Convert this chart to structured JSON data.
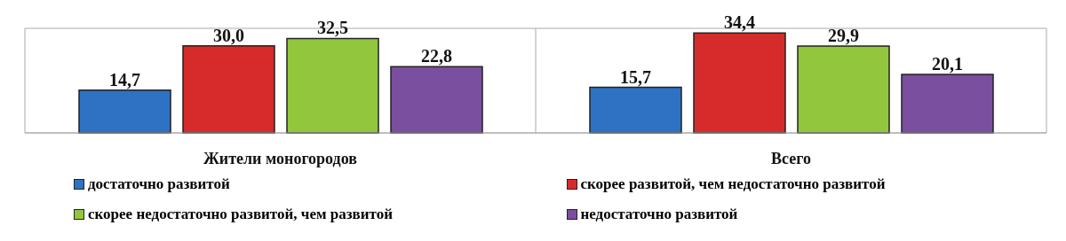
{
  "chart_data": {
    "type": "bar",
    "categories": [
      "Жители моногородов",
      "Всего"
    ],
    "series": [
      {
        "name": "достаточно развитой",
        "color": "#2e72c4",
        "values": [
          14.7,
          15.7
        ],
        "value_labels": [
          "14,7",
          "15,7"
        ]
      },
      {
        "name": "скорее развитой, чем недостаточно развитой",
        "color": "#d62b2b",
        "values": [
          30.0,
          34.4
        ],
        "value_labels": [
          "30,0",
          "34,4"
        ]
      },
      {
        "name": "скорее недостаточно развитой, чем развитой",
        "color": "#92c73d",
        "values": [
          32.5,
          29.9
        ],
        "value_labels": [
          "32,5",
          "29,9"
        ]
      },
      {
        "name": "недостаточно развитой",
        "color": "#7a4f9f",
        "values": [
          22.8,
          20.1
        ],
        "value_labels": [
          "22,8",
          "20,1"
        ]
      }
    ],
    "tick_labels": "x",
    "grid": true,
    "legend": "bottom"
  }
}
